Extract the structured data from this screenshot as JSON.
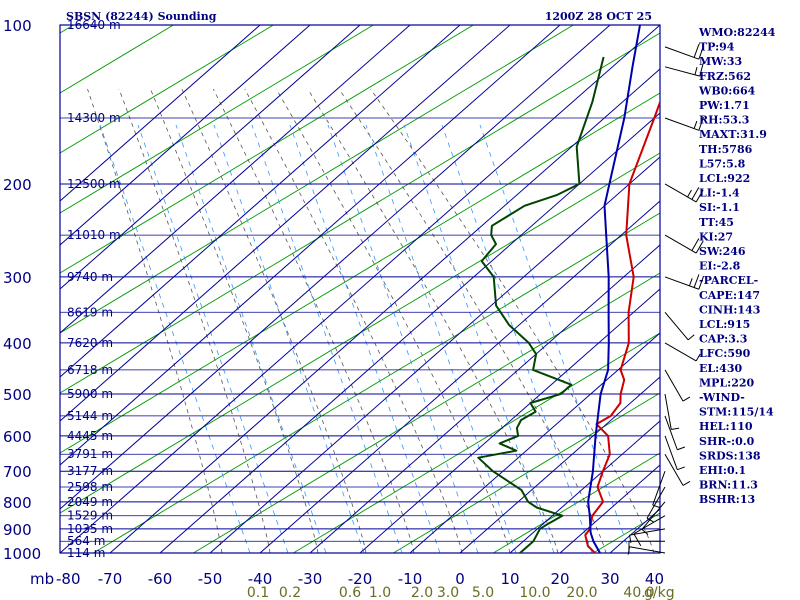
{
  "header": {
    "station": "SBSN (82244) Sounding",
    "time": "1200Z 28 OCT 25"
  },
  "chart_data": {
    "type": "skew-t",
    "pressure_axis": {
      "unit": "mb",
      "top": 100,
      "bottom": 1000,
      "ticks": [
        {
          "p": 100,
          "label": "100"
        },
        {
          "p": 200,
          "label": "200"
        },
        {
          "p": 300,
          "label": "300"
        },
        {
          "p": 400,
          "label": "400"
        },
        {
          "p": 500,
          "label": "500"
        },
        {
          "p": 600,
          "label": "600"
        },
        {
          "p": 700,
          "label": "700"
        },
        {
          "p": 800,
          "label": "800"
        },
        {
          "p": 900,
          "label": "900"
        },
        {
          "p": 1000,
          "label": "1000"
        }
      ],
      "minor_isobars": [
        150,
        250,
        350,
        450,
        550,
        650,
        750,
        850,
        950
      ]
    },
    "temperature_axis": {
      "unit_label": "mb",
      "range": [
        -80,
        40
      ],
      "ticks": [
        {
          "t": -80,
          "label": "-80"
        },
        {
          "t": -70,
          "label": "-70"
        },
        {
          "t": -60,
          "label": "-60"
        },
        {
          "t": -50,
          "label": "-50"
        },
        {
          "t": -40,
          "label": "-40"
        },
        {
          "t": -30,
          "label": "-30"
        },
        {
          "t": -20,
          "label": "-20"
        },
        {
          "t": -10,
          "label": "-10"
        },
        {
          "t": 0,
          "label": "0"
        },
        {
          "t": 10,
          "label": "10"
        },
        {
          "t": 20,
          "label": "20"
        },
        {
          "t": 30,
          "label": "30"
        },
        {
          "t": 40,
          "label": "40"
        }
      ]
    },
    "mixing_ratio": {
      "unit": "g/kg",
      "labels": [
        "0.1",
        "0.2",
        "0.6",
        "1.0",
        "2.0",
        "3.0",
        "5.0",
        "10.0",
        "20.0",
        "40.0"
      ]
    },
    "height_labels": [
      {
        "p": 100,
        "label": "16640 m"
      },
      {
        "p": 150,
        "label": "14300 m"
      },
      {
        "p": 200,
        "label": "12500 m"
      },
      {
        "p": 250,
        "label": "11010 m"
      },
      {
        "p": 300,
        "label": "9740 m"
      },
      {
        "p": 350,
        "label": "8619 m"
      },
      {
        "p": 400,
        "label": "7620 m"
      },
      {
        "p": 450,
        "label": "6718 m"
      },
      {
        "p": 500,
        "label": "5900 m"
      },
      {
        "p": 550,
        "label": "5144 m"
      },
      {
        "p": 600,
        "label": "4445 m"
      },
      {
        "p": 650,
        "label": "3791 m"
      },
      {
        "p": 700,
        "label": "3177 m"
      },
      {
        "p": 750,
        "label": "2598 m"
      },
      {
        "p": 800,
        "label": "2049 m"
      },
      {
        "p": 850,
        "label": "1529 m"
      },
      {
        "p": 900,
        "label": "1035 m"
      },
      {
        "p": 950,
        "label": "564 m"
      },
      {
        "p": 1000,
        "label": "114 m"
      }
    ],
    "series": [
      {
        "name": "Temperature",
        "color": "#cc0000",
        "points": [
          [
            1000,
            27
          ],
          [
            970,
            24
          ],
          [
            925,
            21
          ],
          [
            900,
            20.5
          ],
          [
            850,
            18
          ],
          [
            800,
            17
          ],
          [
            750,
            12.5
          ],
          [
            700,
            10
          ],
          [
            650,
            7.5
          ],
          [
            600,
            3
          ],
          [
            570,
            -2
          ],
          [
            550,
            -1
          ],
          [
            520,
            -2
          ],
          [
            500,
            -4
          ],
          [
            470,
            -6.5
          ],
          [
            450,
            -9.5
          ],
          [
            400,
            -14
          ],
          [
            350,
            -21
          ],
          [
            300,
            -28
          ],
          [
            250,
            -39
          ],
          [
            200,
            -50
          ],
          [
            150,
            -60
          ],
          [
            110,
            -71
          ],
          [
            100,
            -76
          ]
        ]
      },
      {
        "name": "Dewpoint",
        "color": "#004400",
        "points": [
          [
            1000,
            12
          ],
          [
            950,
            12
          ],
          [
            900,
            10.5
          ],
          [
            880,
            11
          ],
          [
            850,
            12
          ],
          [
            820,
            5
          ],
          [
            800,
            2
          ],
          [
            760,
            -2
          ],
          [
            700,
            -12
          ],
          [
            660,
            -18
          ],
          [
            640,
            -12
          ],
          [
            620,
            -17
          ],
          [
            600,
            -15
          ],
          [
            580,
            -17
          ],
          [
            560,
            -18
          ],
          [
            540,
            -17
          ],
          [
            520,
            -20
          ],
          [
            500,
            -16
          ],
          [
            480,
            -16
          ],
          [
            450,
            -27
          ],
          [
            420,
            -30
          ],
          [
            400,
            -34
          ],
          [
            370,
            -42
          ],
          [
            340,
            -49
          ],
          [
            300,
            -56
          ],
          [
            280,
            -62
          ],
          [
            260,
            -63
          ],
          [
            250,
            -66
          ],
          [
            240,
            -68
          ],
          [
            220,
            -66
          ],
          [
            210,
            -62
          ],
          [
            200,
            -60
          ],
          [
            170,
            -69
          ],
          [
            140,
            -76
          ],
          [
            115,
            -84
          ]
        ]
      },
      {
        "name": "Parcel",
        "color": "#0000aa",
        "points": [
          [
            1000,
            28
          ],
          [
            950,
            24
          ],
          [
            915,
            21.5
          ],
          [
            850,
            17.5
          ],
          [
            800,
            14
          ],
          [
            700,
            8
          ],
          [
            600,
            0.5
          ],
          [
            500,
            -8
          ],
          [
            450,
            -12
          ],
          [
            400,
            -18
          ],
          [
            350,
            -25
          ],
          [
            300,
            -33
          ],
          [
            250,
            -43
          ],
          [
            220,
            -50
          ],
          [
            200,
            -54
          ],
          [
            150,
            -66
          ],
          [
            120,
            -76
          ],
          [
            100,
            -84
          ]
        ]
      }
    ]
  },
  "indices": [
    {
      "label": "WMO:82244"
    },
    {
      "label": "TP:94"
    },
    {
      "label": "MW:33"
    },
    {
      "label": "FRZ:562"
    },
    {
      "label": "WB0:664"
    },
    {
      "label": "PW:1.71"
    },
    {
      "label": "RH:53.3"
    },
    {
      "label": "MAXT:31.9"
    },
    {
      "label": "TH:5786"
    },
    {
      "label": "L57:5.8"
    },
    {
      "label": "LCL:922"
    },
    {
      "label": "LI:-1.4"
    },
    {
      "label": "SI:-1.1"
    },
    {
      "label": "TT:45"
    },
    {
      "label": "KI:27"
    },
    {
      "label": "SW:246"
    },
    {
      "label": "EI:-2.8"
    },
    {
      "label": "-PARCEL-"
    },
    {
      "label": "CAPE:147"
    },
    {
      "label": "CINH:143"
    },
    {
      "label": "LCL:915"
    },
    {
      "label": "CAP:3.3"
    },
    {
      "label": "LFC:590"
    },
    {
      "label": "EL:430"
    },
    {
      "label": "MPL:220"
    },
    {
      "label": "-WIND-"
    },
    {
      "label": "STM:115/14"
    },
    {
      "label": "HEL:110"
    },
    {
      "label": "SHR-:0.0"
    },
    {
      "label": "SRDS:138"
    },
    {
      "label": "EHI:0.1"
    },
    {
      "label": "BRN:11.3"
    },
    {
      "label": "BSHR:13"
    }
  ],
  "wind_barbs": [
    {
      "p": 110,
      "dir": 290,
      "kt": 20
    },
    {
      "p": 120,
      "dir": 285,
      "kt": 15
    },
    {
      "p": 150,
      "dir": 290,
      "kt": 15
    },
    {
      "p": 200,
      "dir": 300,
      "kt": 25
    },
    {
      "p": 250,
      "dir": 300,
      "kt": 20
    },
    {
      "p": 300,
      "dir": 290,
      "kt": 25
    },
    {
      "p": 350,
      "dir": 320,
      "kt": 5
    },
    {
      "p": 400,
      "dir": 300,
      "kt": 5
    },
    {
      "p": 450,
      "dir": 330,
      "kt": 5
    },
    {
      "p": 500,
      "dir": 350,
      "kt": 5
    },
    {
      "p": 550,
      "dir": 340,
      "kt": 5
    },
    {
      "p": 600,
      "dir": 340,
      "kt": 5
    },
    {
      "p": 650,
      "dir": 330,
      "kt": 5
    },
    {
      "p": 700,
      "dir": 20,
      "kt": 5
    },
    {
      "p": 750,
      "dir": 30,
      "kt": 5
    },
    {
      "p": 800,
      "dir": 40,
      "kt": 5
    },
    {
      "p": 850,
      "dir": 60,
      "kt": 10
    },
    {
      "p": 900,
      "dir": 80,
      "kt": 5
    },
    {
      "p": 950,
      "dir": 90,
      "kt": 5
    },
    {
      "p": 1000,
      "dir": 100,
      "kt": 5
    }
  ],
  "colors": {
    "grid": "#000099",
    "dry_adiabat": "#009900",
    "moist_adiabat": "#555555",
    "mixing_ratio": "#3399ff"
  }
}
